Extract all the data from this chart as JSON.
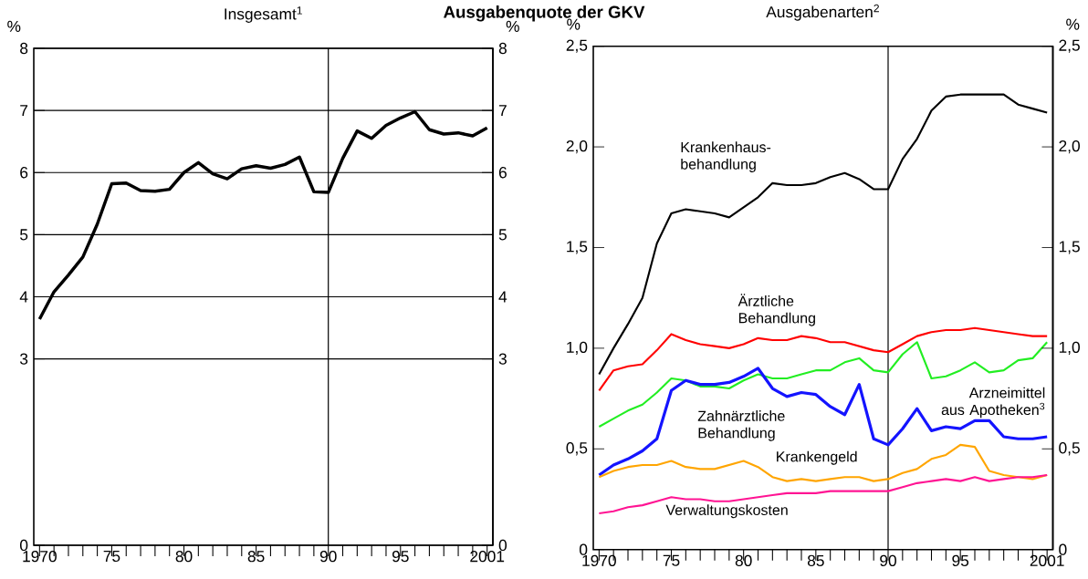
{
  "chart_data": [
    {
      "type": "line",
      "title": "Ausgabenquote der GKV",
      "subtitle": "Insgesamt$^{1}$",
      "ylabel": "%",
      "y2label": "%",
      "x": [
        1970,
        1971,
        1972,
        1973,
        1974,
        1975,
        1976,
        1977,
        1978,
        1979,
        1980,
        1981,
        1982,
        1983,
        1984,
        1985,
        1986,
        1987,
        1988,
        1989,
        1990,
        1991,
        1992,
        1993,
        1994,
        1995,
        1996,
        1997,
        1998,
        1999,
        2000,
        2001
      ],
      "series": [
        {
          "color": "#000000",
          "values": [
            3.64,
            4.08,
            4.35,
            4.64,
            5.17,
            5.82,
            5.83,
            5.71,
            5.7,
            5.73,
            6.0,
            6.16,
            5.98,
            5.9,
            6.06,
            6.11,
            6.07,
            6.13,
            6.25,
            5.69,
            5.68,
            6.23,
            6.67,
            6.55,
            6.76,
            6.88,
            6.98,
            6.69,
            6.62,
            6.64,
            6.59,
            6.72
          ]
        }
      ],
      "xlim": [
        1969.6,
        2001.4
      ],
      "xticks": [
        1970,
        {
          "value": 1971,
          "label": null
        },
        {
          "value": 1972,
          "label": null
        },
        {
          "value": 1973,
          "label": null
        },
        {
          "value": 1974,
          "label": null
        },
        {
          "value": 1975,
          "label": "75"
        },
        {
          "value": 1976,
          "label": null
        },
        {
          "value": 1977,
          "label": null
        },
        {
          "value": 1978,
          "label": null
        },
        {
          "value": 1979,
          "label": null
        },
        {
          "value": 1980,
          "label": "80"
        },
        {
          "value": 1981,
          "label": null
        },
        {
          "value": 1982,
          "label": null
        },
        {
          "value": 1983,
          "label": null
        },
        {
          "value": 1984,
          "label": null
        },
        {
          "value": 1985,
          "label": "85"
        },
        {
          "value": 1986,
          "label": null
        },
        {
          "value": 1987,
          "label": null
        },
        {
          "value": 1988,
          "label": null
        },
        {
          "value": 1989,
          "label": null
        },
        {
          "value": 1990,
          "label": "90"
        },
        {
          "value": 1991,
          "label": null
        },
        {
          "value": 1992,
          "label": null
        },
        {
          "value": 1993,
          "label": null
        },
        {
          "value": 1994,
          "label": null
        },
        {
          "value": 1995,
          "label": "95"
        },
        {
          "value": 1996,
          "label": null
        },
        {
          "value": 1997,
          "label": null
        },
        {
          "value": 1998,
          "label": null
        },
        {
          "value": 1999,
          "label": null
        },
        {
          "value": 2000,
          "label": null
        },
        2001
      ],
      "ylim": [
        0,
        8
      ],
      "yticks": [
        0,
        3,
        4,
        5,
        6,
        7,
        8
      ],
      "y2lim": [
        0,
        8
      ],
      "y2ticks": [
        0,
        3,
        4,
        5,
        6,
        7,
        8
      ],
      "grid": "y",
      "ref_lines": [
        {
          "axis": "x",
          "value": 1990
        }
      ]
    },
    {
      "type": "line",
      "subtitle": "Ausgabenarten$^{2}$",
      "ylabel": "%",
      "y2label": "%",
      "x": [
        1970,
        1971,
        1972,
        1973,
        1974,
        1975,
        1976,
        1977,
        1978,
        1979,
        1980,
        1981,
        1982,
        1983,
        1984,
        1985,
        1986,
        1987,
        1988,
        1989,
        1990,
        1991,
        1992,
        1993,
        1994,
        1995,
        1996,
        1997,
        1998,
        1999,
        2000,
        2001
      ],
      "series": [
        {
          "name": "Krankenhaus-behandlung",
          "color": "#000000",
          "values": [
            0.87,
            1.0,
            1.12,
            1.25,
            1.52,
            1.67,
            1.69,
            1.68,
            1.67,
            1.65,
            1.7,
            1.75,
            1.82,
            1.81,
            1.81,
            1.82,
            1.85,
            1.87,
            1.84,
            1.79,
            1.79,
            1.94,
            2.04,
            2.18,
            2.25,
            2.26,
            2.26,
            2.26,
            2.26,
            2.21,
            2.19,
            2.17
          ]
        },
        {
          "name": "Ärztliche Behandlung",
          "color": "#ff0000",
          "values": [
            0.79,
            0.89,
            0.91,
            0.92,
            0.99,
            1.07,
            1.04,
            1.02,
            1.01,
            1.0,
            1.02,
            1.05,
            1.04,
            1.04,
            1.06,
            1.05,
            1.03,
            1.03,
            1.01,
            0.99,
            0.98,
            1.02,
            1.06,
            1.08,
            1.09,
            1.09,
            1.1,
            1.09,
            1.08,
            1.07,
            1.06,
            1.06
          ]
        },
        {
          "name": "Arzneimittel aus Apotheken$^{3}$",
          "color": "#22ee22",
          "values": [
            0.61,
            0.65,
            0.69,
            0.72,
            0.78,
            0.85,
            0.84,
            0.81,
            0.81,
            0.8,
            0.84,
            0.87,
            0.85,
            0.85,
            0.87,
            0.89,
            0.89,
            0.93,
            0.95,
            0.89,
            0.88,
            0.97,
            1.03,
            0.85,
            0.86,
            0.89,
            0.93,
            0.88,
            0.89,
            0.94,
            0.95,
            1.03
          ]
        },
        {
          "name": "Zahnärztliche Behandlung",
          "color": "#1414ff",
          "values": [
            0.37,
            0.42,
            0.45,
            0.49,
            0.55,
            0.79,
            0.84,
            0.82,
            0.82,
            0.83,
            0.86,
            0.9,
            0.8,
            0.76,
            0.78,
            0.77,
            0.71,
            0.67,
            0.82,
            0.55,
            0.52,
            0.6,
            0.7,
            0.59,
            0.61,
            0.6,
            0.64,
            0.64,
            0.56,
            0.55,
            0.55,
            0.56
          ]
        },
        {
          "name": "Krankengeld",
          "color": "#ffa500",
          "values": [
            0.36,
            0.39,
            0.41,
            0.42,
            0.42,
            0.44,
            0.41,
            0.4,
            0.4,
            0.42,
            0.44,
            0.41,
            0.36,
            0.34,
            0.35,
            0.34,
            0.35,
            0.36,
            0.36,
            0.34,
            0.35,
            0.38,
            0.4,
            0.45,
            0.47,
            0.52,
            0.51,
            0.39,
            0.37,
            0.36,
            0.35,
            0.37
          ]
        },
        {
          "name": "Verwaltungskosten",
          "color": "#ff1493",
          "values": [
            0.18,
            0.19,
            0.21,
            0.22,
            0.24,
            0.26,
            0.25,
            0.25,
            0.24,
            0.24,
            0.25,
            0.26,
            0.27,
            0.28,
            0.28,
            0.28,
            0.29,
            0.29,
            0.29,
            0.29,
            0.29,
            0.31,
            0.33,
            0.34,
            0.35,
            0.34,
            0.36,
            0.34,
            0.35,
            0.36,
            0.36,
            0.37
          ]
        }
      ],
      "xlim": [
        1969.6,
        2001.4
      ],
      "xticks": [
        1970,
        {
          "value": 1971,
          "label": null
        },
        {
          "value": 1972,
          "label": null
        },
        {
          "value": 1973,
          "label": null
        },
        {
          "value": 1974,
          "label": null
        },
        {
          "value": 1975,
          "label": "75"
        },
        {
          "value": 1976,
          "label": null
        },
        {
          "value": 1977,
          "label": null
        },
        {
          "value": 1978,
          "label": null
        },
        {
          "value": 1979,
          "label": null
        },
        {
          "value": 1980,
          "label": "80"
        },
        {
          "value": 1981,
          "label": null
        },
        {
          "value": 1982,
          "label": null
        },
        {
          "value": 1983,
          "label": null
        },
        {
          "value": 1984,
          "label": null
        },
        {
          "value": 1985,
          "label": "85"
        },
        {
          "value": 1986,
          "label": null
        },
        {
          "value": 1987,
          "label": null
        },
        {
          "value": 1988,
          "label": null
        },
        {
          "value": 1989,
          "label": null
        },
        {
          "value": 1990,
          "label": "90"
        },
        {
          "value": 1991,
          "label": null
        },
        {
          "value": 1992,
          "label": null
        },
        {
          "value": 1993,
          "label": null
        },
        {
          "value": 1994,
          "label": null
        },
        {
          "value": 1995,
          "label": "95"
        },
        {
          "value": 1996,
          "label": null
        },
        {
          "value": 1997,
          "label": null
        },
        {
          "value": 1998,
          "label": null
        },
        {
          "value": 1999,
          "label": null
        },
        {
          "value": 2000,
          "label": null
        },
        2001
      ],
      "ylim": [
        0,
        2.5
      ],
      "yticks": [
        0,
        {
          "value": 0.5,
          "label": "0,5"
        },
        {
          "value": 1.0,
          "label": "1,0"
        },
        {
          "value": 1.5,
          "label": "1,5"
        },
        {
          "value": 2.0,
          "label": "2,0"
        },
        {
          "value": 2.5,
          "label": "2,5"
        }
      ],
      "y2lim": [
        0,
        2.5
      ],
      "y2ticks": [
        0,
        {
          "value": 0.5,
          "label": "0,5"
        },
        {
          "value": 1.0,
          "label": "1,0"
        },
        {
          "value": 1.5,
          "label": "1,5"
        },
        {
          "value": 2.0,
          "label": "2,0"
        },
        {
          "value": 2.5,
          "label": "2,5"
        }
      ],
      "ref_lines": [
        {
          "axis": "x",
          "value": 1990
        }
      ]
    }
  ]
}
